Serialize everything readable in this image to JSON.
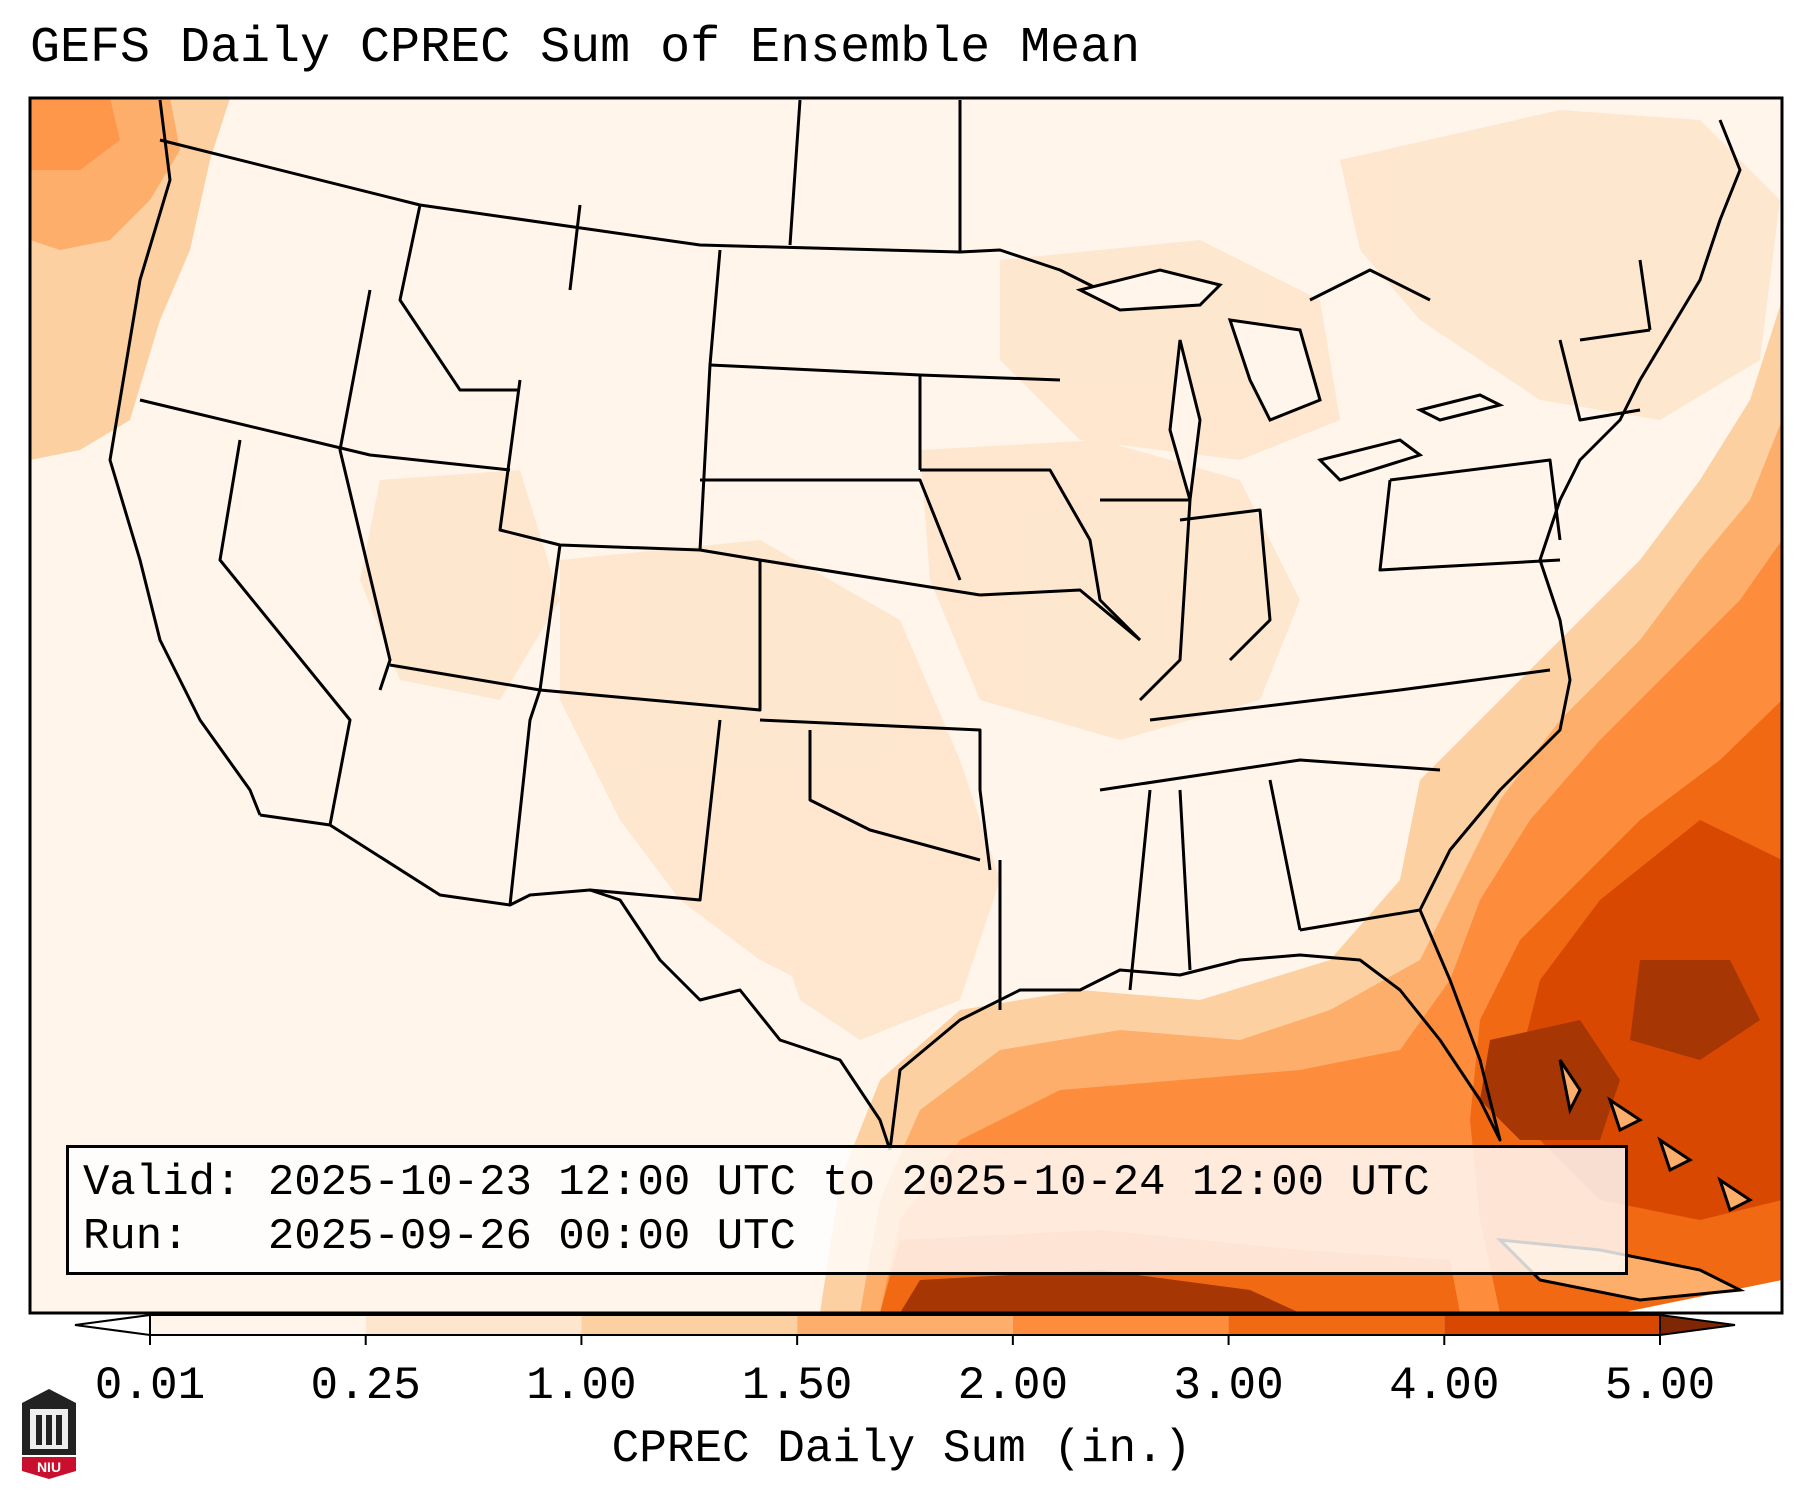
{
  "title": "GEFS Daily CPREC Sum of Ensemble Mean",
  "info": {
    "valid_label": "Valid:",
    "valid_value": "2025-10-23 12:00 UTC to 2025-10-24 12:00 UTC",
    "run_label": "Run:",
    "run_value": "2025-09-26 00:00 UTC"
  },
  "colorbar": {
    "label": "CPREC Daily Sum (in.)",
    "ticks": [
      "0.01",
      "0.25",
      "1.00",
      "1.50",
      "2.00",
      "3.00",
      "4.00",
      "5.00"
    ],
    "colors": [
      "#fff5eb",
      "#fee6ce",
      "#fdd0a2",
      "#fdae6b",
      "#fd8d3c",
      "#f16913",
      "#d94801",
      "#a63603"
    ],
    "over_color": "#7f2704"
  },
  "logo": {
    "text": "NIU",
    "color": "#c8102e"
  },
  "map": {
    "region": "Contiguous United States",
    "coastline_color": "#000000",
    "border_color": "#000000"
  }
}
